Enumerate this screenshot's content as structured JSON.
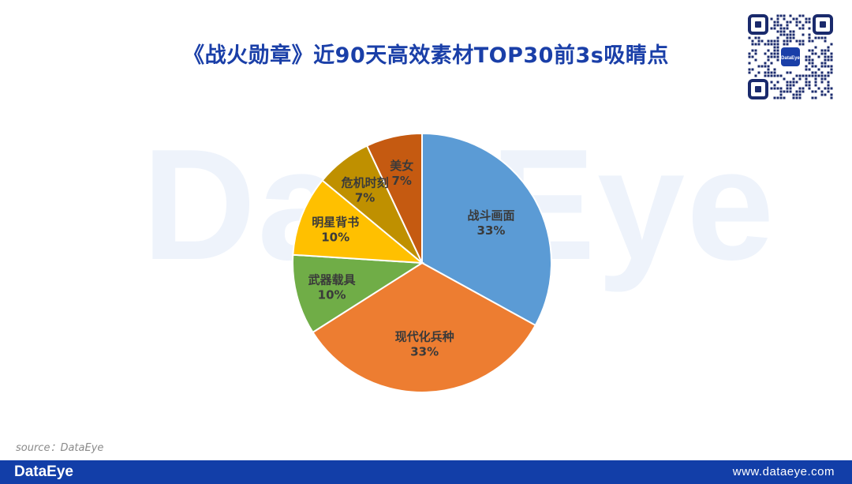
{
  "title": "《战火勋章》近90天高效素材TOP30前3s吸睛点",
  "watermark": "DataEye",
  "qr_badge": "DataEye",
  "source": "source：DataEye",
  "footer": {
    "logo": "DataEye",
    "url": "www.dataeye.com"
  },
  "colors": {
    "title": "#1a3fa8",
    "footer": "#123ea8",
    "label": "#3a3a3a"
  },
  "chart_data": {
    "type": "pie",
    "title": "",
    "slices": [
      {
        "label": "战斗画面",
        "pct_label": "33%",
        "value": 33,
        "color": "#5b9bd5"
      },
      {
        "label": "现代化兵种",
        "pct_label": "33%",
        "value": 33,
        "color": "#ed7d31"
      },
      {
        "label": "武器载具",
        "pct_label": "10%",
        "value": 10,
        "color": "#70ad47"
      },
      {
        "label": "明星背书",
        "pct_label": "10%",
        "value": 10,
        "color": "#ffc000"
      },
      {
        "label": "危机时刻",
        "pct_label": "7%",
        "value": 7,
        "color": "#bf9000"
      },
      {
        "label": "美女",
        "pct_label": "7%",
        "value": 7,
        "color": "#c55a11"
      }
    ],
    "start_angle": "12 o'clock",
    "direction": "clockwise",
    "legend": "none"
  }
}
